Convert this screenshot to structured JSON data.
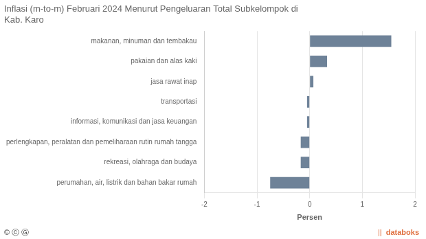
{
  "chart_data": {
    "type": "bar",
    "orientation": "horizontal",
    "title": [
      "Inflasi (m-to-m) Februari 2024 Menurut Pengeluaran Total Subkelompok di",
      "Kab. Karo"
    ],
    "categories": [
      "perumahan, air, listrik dan bahan bakar rumah",
      "rekreasi, olahraga dan budaya",
      "perlengkapan, peralatan dan pemeliharaan rutin rumah tangga",
      "informasi, komunikasi dan jasa keuangan",
      "transportasi",
      "jasa rawat inap",
      "pakaian dan alas kaki",
      "makanan, minuman dan tembakau"
    ],
    "values": [
      -0.75,
      -0.17,
      -0.17,
      -0.05,
      -0.05,
      0.07,
      0.33,
      1.55
    ],
    "color": "#6e8298",
    "xlabel": "Persen",
    "xlim": [
      -2,
      2
    ],
    "xticks": [
      -2,
      -1,
      0,
      1,
      2
    ],
    "grid": true,
    "annotations": [
      {
        "text": "© ⓒ Ⓖ",
        "color": "#444444"
      },
      {
        "text": "||",
        "color": "#e07040"
      },
      {
        "text": "databoks",
        "color": "#e07040"
      }
    ]
  }
}
